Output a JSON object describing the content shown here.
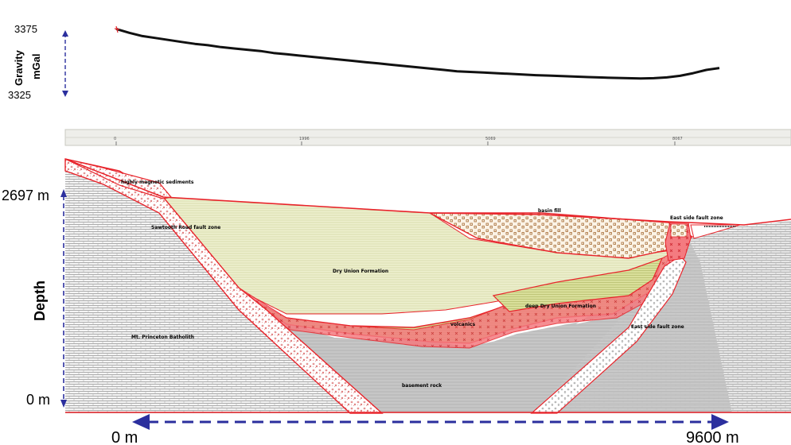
{
  "gravity": {
    "axis_label": "Gravity",
    "unit": "mGal",
    "top_value": "3375",
    "bottom_value": "3325",
    "profile": [
      3376,
      3373,
      3370.5,
      3369,
      3367.5,
      3366,
      3364.5,
      3363.5,
      3362,
      3361,
      3360,
      3359,
      3357.5,
      3356.5,
      3355.5,
      3354.5,
      3353.5,
      3352.5,
      3351.5,
      3350.5,
      3349.5,
      3348.5,
      3347.5,
      3346.5,
      3345.5,
      3344.5,
      3343.5,
      3343,
      3342.5,
      3342,
      3341.5,
      3341,
      3340.5,
      3340.2,
      3339.8,
      3339.4,
      3339,
      3338.7,
      3338.4,
      3338.2,
      3338,
      3338.2,
      3338.8,
      3340,
      3342,
      3344.5,
      3346
    ]
  },
  "ruler": {
    "ticks": [
      "0",
      "1996",
      "5069",
      "8067"
    ]
  },
  "section": {
    "depth_label": "Depth",
    "top_depth": "2697 m",
    "bottom_depth": "0 m",
    "distance_start": "0 m",
    "distance_end": "9600 m",
    "units": [
      {
        "key": "highly_magnetic",
        "label": "highly magnetic sediments"
      },
      {
        "key": "sawtooth_fault",
        "label": "Sawtooth Road fault zone"
      },
      {
        "key": "basin_fill",
        "label": "basin fill"
      },
      {
        "key": "east_fault_upper",
        "label": "East side fault zone"
      },
      {
        "key": "dry_union",
        "label": "Dry Union Formation"
      },
      {
        "key": "deep_dry_union",
        "label": "deep Dry Union Formation"
      },
      {
        "key": "volcanics",
        "label": "volcanics"
      },
      {
        "key": "east_fault_lower",
        "label": "East side fault zone"
      },
      {
        "key": "batholith",
        "label": "Mt. Princeton Batholith"
      },
      {
        "key": "basement",
        "label": "basement rock"
      }
    ]
  },
  "colors": {
    "outline": "#e8242b",
    "arrow": "#2b2f9e",
    "fill_red": "#f26d73",
    "fill_olive": "#e5ebb4",
    "fill_basin": "#f7ecdc"
  }
}
